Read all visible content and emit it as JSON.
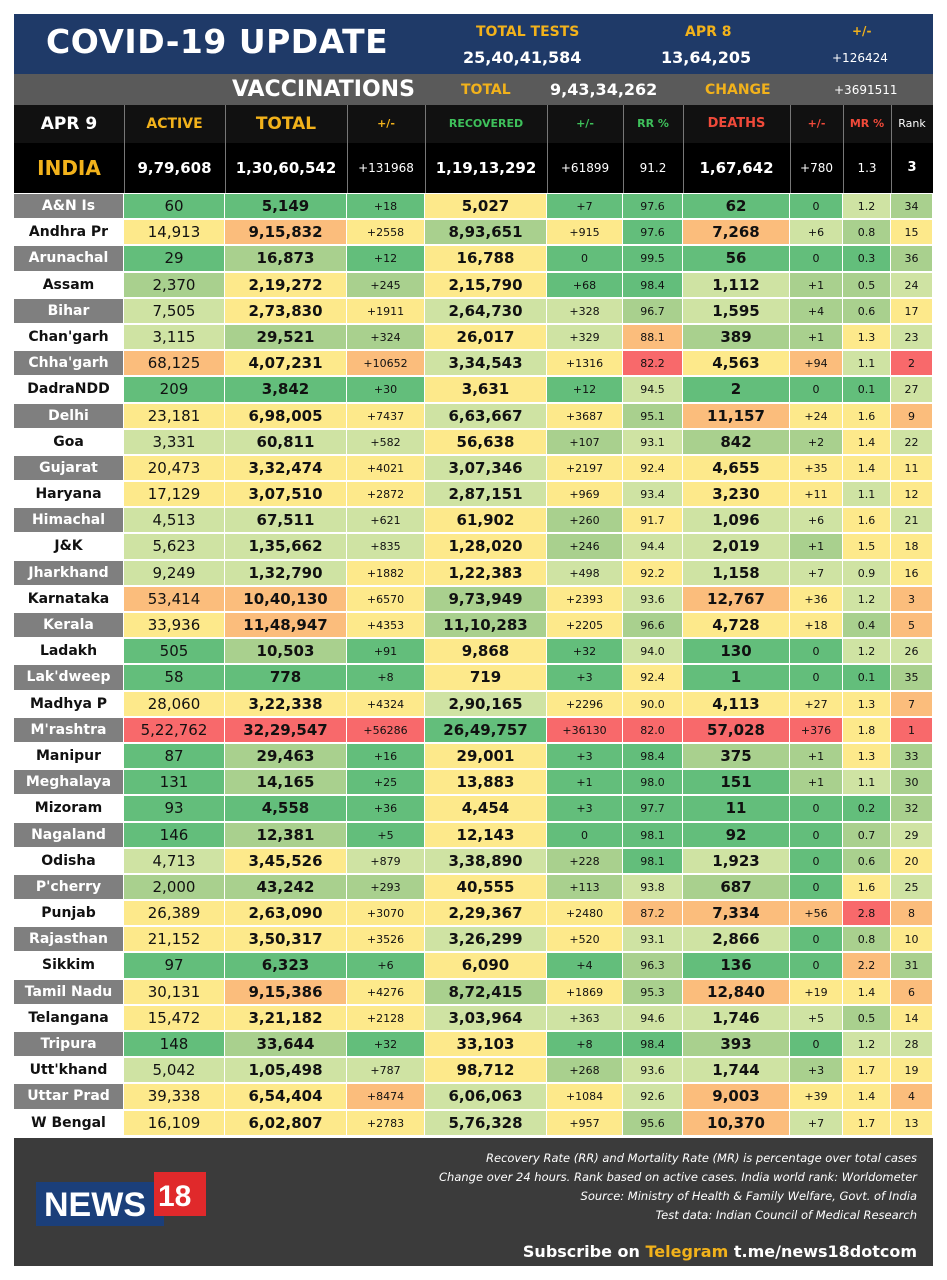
{
  "header": {
    "title": "COVID-19 UPDATE",
    "total_tests_label": "TOTAL TESTS",
    "total_tests_value": "25,40,41,584",
    "date_label": "APR 8",
    "date_tests_value": "13,64,205",
    "change_label": "+/-",
    "change_value": "+126424",
    "vaccinations_label": "VACCINATIONS",
    "vac_total_label": "TOTAL",
    "vac_total_value": "9,43,34,262",
    "vac_change_label": "CHANGE",
    "vac_change_value": "+3691511"
  },
  "columns": {
    "date": "APR 9",
    "active": "ACTIVE",
    "total": "TOTAL",
    "total_change": "+/-",
    "recovered": "RECOVERED",
    "recovered_change": "+/-",
    "rr": "RR %",
    "deaths": "DEATHS",
    "deaths_change": "+/-",
    "mr": "MR %",
    "rank": "Rank"
  },
  "india": {
    "name": "INDIA",
    "active": "9,79,608",
    "total": "1,30,60,542",
    "total_change": "+131968",
    "recovered": "1,19,13,292",
    "recovered_change": "+61899",
    "rr": "91.2",
    "deaths": "1,67,642",
    "deaths_change": "+780",
    "mr": "1.3",
    "rank": "3"
  },
  "colors": {
    "dark_green": "#63be7b",
    "light_green": "#a9d08e",
    "pale_green": "#cfe3a3",
    "yellow": "#fde98b",
    "orange": "#fbbd7c",
    "red": "#f8696b",
    "header_blue": "#1f3a68",
    "accent_gold": "#f2b21b"
  },
  "states": [
    {
      "name": "A&N Is",
      "active": "60",
      "total": "5,149",
      "tc": "+18",
      "rec": "5,027",
      "rc": "+7",
      "rr": "97.6",
      "deaths": "62",
      "dc": "0",
      "mr": "1.2",
      "rank": "34"
    },
    {
      "name": "Andhra Pr",
      "active": "14,913",
      "total": "9,15,832",
      "tc": "+2558",
      "rec": "8,93,651",
      "rc": "+915",
      "rr": "97.6",
      "deaths": "7,268",
      "dc": "+6",
      "mr": "0.8",
      "rank": "15"
    },
    {
      "name": "Arunachal",
      "active": "29",
      "total": "16,873",
      "tc": "+12",
      "rec": "16,788",
      "rc": "0",
      "rr": "99.5",
      "deaths": "56",
      "dc": "0",
      "mr": "0.3",
      "rank": "36"
    },
    {
      "name": "Assam",
      "active": "2,370",
      "total": "2,19,272",
      "tc": "+245",
      "rec": "2,15,790",
      "rc": "+68",
      "rr": "98.4",
      "deaths": "1,112",
      "dc": "+1",
      "mr": "0.5",
      "rank": "24"
    },
    {
      "name": "Bihar",
      "active": "7,505",
      "total": "2,73,830",
      "tc": "+1911",
      "rec": "2,64,730",
      "rc": "+328",
      "rr": "96.7",
      "deaths": "1,595",
      "dc": "+4",
      "mr": "0.6",
      "rank": "17"
    },
    {
      "name": "Chan'garh",
      "active": "3,115",
      "total": "29,521",
      "tc": "+324",
      "rec": "26,017",
      "rc": "+329",
      "rr": "88.1",
      "deaths": "389",
      "dc": "+1",
      "mr": "1.3",
      "rank": "23"
    },
    {
      "name": "Chha'garh",
      "active": "68,125",
      "total": "4,07,231",
      "tc": "+10652",
      "rec": "3,34,543",
      "rc": "+1316",
      "rr": "82.2",
      "deaths": "4,563",
      "dc": "+94",
      "mr": "1.1",
      "rank": "2"
    },
    {
      "name": "DadraNDD",
      "active": "209",
      "total": "3,842",
      "tc": "+30",
      "rec": "3,631",
      "rc": "+12",
      "rr": "94.5",
      "deaths": "2",
      "dc": "0",
      "mr": "0.1",
      "rank": "27"
    },
    {
      "name": "Delhi",
      "active": "23,181",
      "total": "6,98,005",
      "tc": "+7437",
      "rec": "6,63,667",
      "rc": "+3687",
      "rr": "95.1",
      "deaths": "11,157",
      "dc": "+24",
      "mr": "1.6",
      "rank": "9"
    },
    {
      "name": "Goa",
      "active": "3,331",
      "total": "60,811",
      "tc": "+582",
      "rec": "56,638",
      "rc": "+107",
      "rr": "93.1",
      "deaths": "842",
      "dc": "+2",
      "mr": "1.4",
      "rank": "22"
    },
    {
      "name": "Gujarat",
      "active": "20,473",
      "total": "3,32,474",
      "tc": "+4021",
      "rec": "3,07,346",
      "rc": "+2197",
      "rr": "92.4",
      "deaths": "4,655",
      "dc": "+35",
      "mr": "1.4",
      "rank": "11"
    },
    {
      "name": "Haryana",
      "active": "17,129",
      "total": "3,07,510",
      "tc": "+2872",
      "rec": "2,87,151",
      "rc": "+969",
      "rr": "93.4",
      "deaths": "3,230",
      "dc": "+11",
      "mr": "1.1",
      "rank": "12"
    },
    {
      "name": "Himachal",
      "active": "4,513",
      "total": "67,511",
      "tc": "+621",
      "rec": "61,902",
      "rc": "+260",
      "rr": "91.7",
      "deaths": "1,096",
      "dc": "+6",
      "mr": "1.6",
      "rank": "21"
    },
    {
      "name": "J&K",
      "active": "5,623",
      "total": "1,35,662",
      "tc": "+835",
      "rec": "1,28,020",
      "rc": "+246",
      "rr": "94.4",
      "deaths": "2,019",
      "dc": "+1",
      "mr": "1.5",
      "rank": "18"
    },
    {
      "name": "Jharkhand",
      "active": "9,249",
      "total": "1,32,790",
      "tc": "+1882",
      "rec": "1,22,383",
      "rc": "+498",
      "rr": "92.2",
      "deaths": "1,158",
      "dc": "+7",
      "mr": "0.9",
      "rank": "16"
    },
    {
      "name": "Karnataka",
      "active": "53,414",
      "total": "10,40,130",
      "tc": "+6570",
      "rec": "9,73,949",
      "rc": "+2393",
      "rr": "93.6",
      "deaths": "12,767",
      "dc": "+36",
      "mr": "1.2",
      "rank": "3"
    },
    {
      "name": "Kerala",
      "active": "33,936",
      "total": "11,48,947",
      "tc": "+4353",
      "rec": "11,10,283",
      "rc": "+2205",
      "rr": "96.6",
      "deaths": "4,728",
      "dc": "+18",
      "mr": "0.4",
      "rank": "5"
    },
    {
      "name": "Ladakh",
      "active": "505",
      "total": "10,503",
      "tc": "+91",
      "rec": "9,868",
      "rc": "+32",
      "rr": "94.0",
      "deaths": "130",
      "dc": "0",
      "mr": "1.2",
      "rank": "26"
    },
    {
      "name": "Lak'dweep",
      "active": "58",
      "total": "778",
      "tc": "+8",
      "rec": "719",
      "rc": "+3",
      "rr": "92.4",
      "deaths": "1",
      "dc": "0",
      "mr": "0.1",
      "rank": "35"
    },
    {
      "name": "Madhya P",
      "active": "28,060",
      "total": "3,22,338",
      "tc": "+4324",
      "rec": "2,90,165",
      "rc": "+2296",
      "rr": "90.0",
      "deaths": "4,113",
      "dc": "+27",
      "mr": "1.3",
      "rank": "7"
    },
    {
      "name": "M'rashtra",
      "active": "5,22,762",
      "total": "32,29,547",
      "tc": "+56286",
      "rec": "26,49,757",
      "rc": "+36130",
      "rr": "82.0",
      "deaths": "57,028",
      "dc": "+376",
      "mr": "1.8",
      "rank": "1"
    },
    {
      "name": "Manipur",
      "active": "87",
      "total": "29,463",
      "tc": "+16",
      "rec": "29,001",
      "rc": "+3",
      "rr": "98.4",
      "deaths": "375",
      "dc": "+1",
      "mr": "1.3",
      "rank": "33"
    },
    {
      "name": "Meghalaya",
      "active": "131",
      "total": "14,165",
      "tc": "+25",
      "rec": "13,883",
      "rc": "+1",
      "rr": "98.0",
      "deaths": "151",
      "dc": "+1",
      "mr": "1.1",
      "rank": "30"
    },
    {
      "name": "Mizoram",
      "active": "93",
      "total": "4,558",
      "tc": "+36",
      "rec": "4,454",
      "rc": "+3",
      "rr": "97.7",
      "deaths": "11",
      "dc": "0",
      "mr": "0.2",
      "rank": "32"
    },
    {
      "name": "Nagaland",
      "active": "146",
      "total": "12,381",
      "tc": "+5",
      "rec": "12,143",
      "rc": "0",
      "rr": "98.1",
      "deaths": "92",
      "dc": "0",
      "mr": "0.7",
      "rank": "29"
    },
    {
      "name": "Odisha",
      "active": "4,713",
      "total": "3,45,526",
      "tc": "+879",
      "rec": "3,38,890",
      "rc": "+228",
      "rr": "98.1",
      "deaths": "1,923",
      "dc": "0",
      "mr": "0.6",
      "rank": "20"
    },
    {
      "name": "P'cherry",
      "active": "2,000",
      "total": "43,242",
      "tc": "+293",
      "rec": "40,555",
      "rc": "+113",
      "rr": "93.8",
      "deaths": "687",
      "dc": "0",
      "mr": "1.6",
      "rank": "25"
    },
    {
      "name": "Punjab",
      "active": "26,389",
      "total": "2,63,090",
      "tc": "+3070",
      "rec": "2,29,367",
      "rc": "+2480",
      "rr": "87.2",
      "deaths": "7,334",
      "dc": "+56",
      "mr": "2.8",
      "rank": "8"
    },
    {
      "name": "Rajasthan",
      "active": "21,152",
      "total": "3,50,317",
      "tc": "+3526",
      "rec": "3,26,299",
      "rc": "+520",
      "rr": "93.1",
      "deaths": "2,866",
      "dc": "0",
      "mr": "0.8",
      "rank": "10"
    },
    {
      "name": "Sikkim",
      "active": "97",
      "total": "6,323",
      "tc": "+6",
      "rec": "6,090",
      "rc": "+4",
      "rr": "96.3",
      "deaths": "136",
      "dc": "0",
      "mr": "2.2",
      "rank": "31"
    },
    {
      "name": "Tamil Nadu",
      "active": "30,131",
      "total": "9,15,386",
      "tc": "+4276",
      "rec": "8,72,415",
      "rc": "+1869",
      "rr": "95.3",
      "deaths": "12,840",
      "dc": "+19",
      "mr": "1.4",
      "rank": "6"
    },
    {
      "name": "Telangana",
      "active": "15,472",
      "total": "3,21,182",
      "tc": "+2128",
      "rec": "3,03,964",
      "rc": "+363",
      "rr": "94.6",
      "deaths": "1,746",
      "dc": "+5",
      "mr": "0.5",
      "rank": "14"
    },
    {
      "name": "Tripura",
      "active": "148",
      "total": "33,644",
      "tc": "+32",
      "rec": "33,103",
      "rc": "+8",
      "rr": "98.4",
      "deaths": "393",
      "dc": "0",
      "mr": "1.2",
      "rank": "28"
    },
    {
      "name": "Utt'khand",
      "active": "5,042",
      "total": "1,05,498",
      "tc": "+787",
      "rec": "98,712",
      "rc": "+268",
      "rr": "93.6",
      "deaths": "1,744",
      "dc": "+3",
      "mr": "1.7",
      "rank": "19"
    },
    {
      "name": "Uttar Prad",
      "active": "39,338",
      "total": "6,54,404",
      "tc": "+8474",
      "rec": "6,06,063",
      "rc": "+1084",
      "rr": "92.6",
      "deaths": "9,003",
      "dc": "+39",
      "mr": "1.4",
      "rank": "4"
    },
    {
      "name": "W Bengal",
      "active": "16,109",
      "total": "6,02,807",
      "tc": "+2783",
      "rec": "5,76,328",
      "rc": "+957",
      "rr": "95.6",
      "deaths": "10,370",
      "dc": "+7",
      "mr": "1.7",
      "rank": "13"
    }
  ],
  "footer": {
    "notes": [
      "Recovery Rate (RR) and Mortality Rate (MR) is percentage over total cases",
      "Change over 24 hours. Rank based on active cases. India world rank: Worldometer",
      "Source: Ministry of Health & Family Welfare, Govt. of India",
      "Test data: Indian Council of Medical Research"
    ],
    "subscribe_prefix": "Subscribe on ",
    "subscribe_platform": "Telegram",
    "subscribe_link": " t.me/news18dotcom",
    "logo_text": "NEWS",
    "logo_number": "18"
  }
}
